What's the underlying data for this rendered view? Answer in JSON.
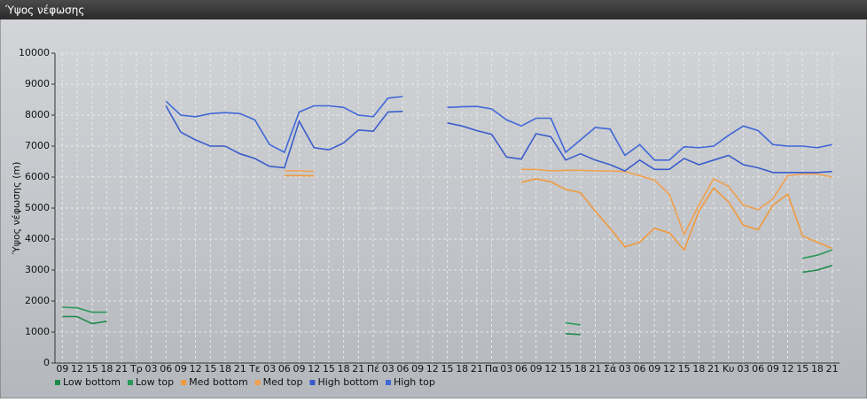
{
  "window": {
    "title": "Ύψος νέφωσης"
  },
  "chart_data": {
    "type": "line",
    "y_label": "Ύψος νέφωσης (m)",
    "categories": [
      "09",
      "12",
      "15",
      "18",
      "21",
      "Τρ",
      "03",
      "06",
      "09",
      "12",
      "15",
      "18",
      "21",
      "Τε",
      "03",
      "06",
      "09",
      "12",
      "15",
      "18",
      "21",
      "Πέ",
      "03",
      "06",
      "09",
      "12",
      "15",
      "18",
      "21",
      "Πα",
      "03",
      "06",
      "09",
      "12",
      "15",
      "18",
      "21",
      "Σά",
      "03",
      "06",
      "09",
      "12",
      "15",
      "18",
      "21",
      "Κυ",
      "03",
      "06",
      "09",
      "12",
      "15",
      "18",
      "21"
    ],
    "ylim": [
      0,
      10000
    ],
    "yticks": [
      0,
      1000,
      2000,
      3000,
      4000,
      5000,
      6000,
      7000,
      8000,
      9000,
      10000
    ],
    "grid": true,
    "legend": "bottom-left",
    "series": [
      {
        "name": "Low bottom",
        "color": "#1f8a4c",
        "values": [
          1500,
          1500,
          1270,
          1350,
          null,
          null,
          null,
          null,
          null,
          null,
          null,
          null,
          null,
          null,
          null,
          null,
          null,
          null,
          null,
          null,
          null,
          null,
          null,
          null,
          null,
          null,
          null,
          null,
          null,
          null,
          null,
          null,
          null,
          null,
          950,
          920,
          null,
          null,
          null,
          null,
          null,
          null,
          null,
          null,
          null,
          null,
          null,
          null,
          null,
          null,
          2930,
          3000,
          3150
        ]
      },
      {
        "name": "Low top",
        "color": "#2a9a5a",
        "values": [
          1800,
          1780,
          1640,
          1640,
          null,
          null,
          null,
          null,
          null,
          null,
          null,
          null,
          null,
          null,
          null,
          null,
          null,
          null,
          null,
          null,
          null,
          null,
          null,
          null,
          null,
          null,
          null,
          null,
          null,
          null,
          null,
          null,
          null,
          null,
          1300,
          1230,
          null,
          null,
          null,
          null,
          null,
          null,
          null,
          null,
          null,
          null,
          null,
          null,
          null,
          null,
          3380,
          3480,
          3650
        ]
      },
      {
        "name": "Med bottom",
        "color": "#f09a3e",
        "values": [
          null,
          null,
          null,
          null,
          null,
          null,
          null,
          null,
          null,
          null,
          null,
          null,
          null,
          null,
          null,
          6050,
          6050,
          6040,
          null,
          null,
          null,
          null,
          null,
          null,
          null,
          null,
          null,
          null,
          null,
          null,
          null,
          5830,
          5950,
          5850,
          5600,
          5500,
          4900,
          4350,
          3750,
          3900,
          4350,
          4200,
          3650,
          4900,
          5650,
          5200,
          4450,
          4300,
          5100,
          5450,
          4100,
          3900,
          3700
        ]
      },
      {
        "name": "Med top",
        "color": "#f0a050",
        "values": [
          null,
          null,
          null,
          null,
          null,
          null,
          null,
          null,
          null,
          null,
          null,
          null,
          null,
          null,
          null,
          6200,
          6200,
          6180,
          null,
          null,
          null,
          null,
          null,
          null,
          null,
          null,
          null,
          null,
          null,
          null,
          null,
          6250,
          6250,
          6200,
          6220,
          6220,
          6200,
          6200,
          6180,
          6050,
          5900,
          5450,
          4150,
          5100,
          5950,
          5700,
          5100,
          4950,
          5300,
          6050,
          6100,
          6100,
          6000
        ]
      },
      {
        "name": "High bottom",
        "color": "#3a5ccc",
        "values": [
          null,
          null,
          null,
          null,
          null,
          null,
          null,
          8300,
          7450,
          7200,
          7000,
          7000,
          6750,
          6600,
          6350,
          6300,
          7800,
          6950,
          6880,
          7100,
          7520,
          7480,
          8100,
          8120,
          null,
          null,
          7750,
          7650,
          7500,
          7380,
          6650,
          6580,
          7400,
          7300,
          6550,
          6750,
          6550,
          6400,
          6200,
          6550,
          6250,
          6250,
          6600,
          6400,
          6550,
          6700,
          6400,
          6300,
          6150,
          6150,
          6150,
          6150,
          6180
        ]
      },
      {
        "name": "High top",
        "color": "#4068d8",
        "values": [
          null,
          null,
          null,
          null,
          null,
          null,
          null,
          8450,
          8000,
          7950,
          8050,
          8080,
          8050,
          7850,
          7050,
          6800,
          8100,
          8300,
          8300,
          8250,
          8000,
          7950,
          8550,
          8600,
          null,
          null,
          8250,
          8270,
          8280,
          8200,
          7850,
          7650,
          7900,
          7900,
          6800,
          7200,
          7600,
          7550,
          6700,
          7050,
          6550,
          6550,
          6980,
          6950,
          7000,
          7350,
          7650,
          7500,
          7050,
          7000,
          7000,
          6950,
          7050
        ]
      }
    ]
  }
}
